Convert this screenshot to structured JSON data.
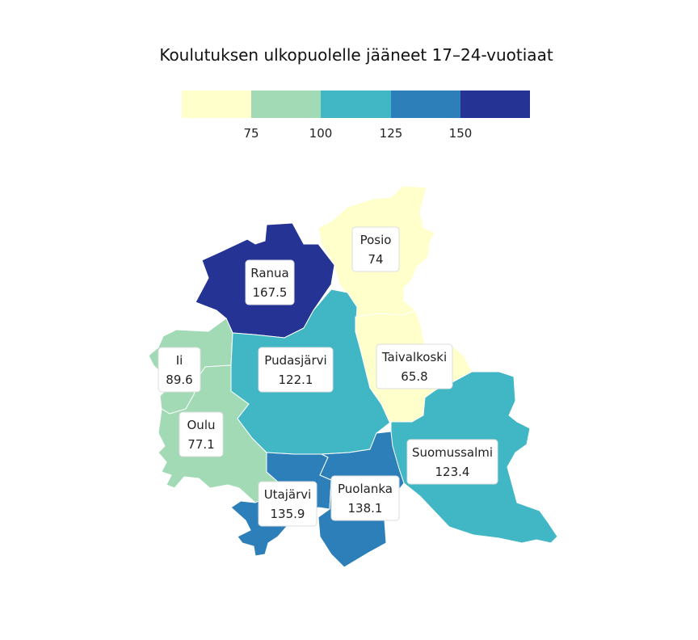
{
  "title": "Koulutuksen ulkopuolelle jääneet 17–24-vuotiaat",
  "legend": {
    "bins": [
      {
        "color": "#ffffcc"
      },
      {
        "color": "#a1dab4"
      },
      {
        "color": "#41b6c4"
      },
      {
        "color": "#2c7fb8"
      },
      {
        "color": "#253494"
      }
    ],
    "ticks": [
      "75",
      "100",
      "125",
      "150"
    ]
  },
  "regions": [
    {
      "name": "Ranua",
      "value": "167.5",
      "color": "#253494"
    },
    {
      "name": "Posio",
      "value": "74",
      "color": "#ffffcc"
    },
    {
      "name": "Ii",
      "value": "89.6",
      "color": "#a1dab4"
    },
    {
      "name": "Pudasjärvi",
      "value": "122.1",
      "color": "#41b6c4"
    },
    {
      "name": "Taivalkoski",
      "value": "65.8",
      "color": "#ffffcc"
    },
    {
      "name": "Oulu",
      "value": "77.1",
      "color": "#a1dab4"
    },
    {
      "name": "Suomussalmi",
      "value": "123.4",
      "color": "#41b6c4"
    },
    {
      "name": "Utajärvi",
      "value": "135.9",
      "color": "#2c7fb8"
    },
    {
      "name": "Puolanka",
      "value": "138.1",
      "color": "#2c7fb8"
    }
  ]
}
